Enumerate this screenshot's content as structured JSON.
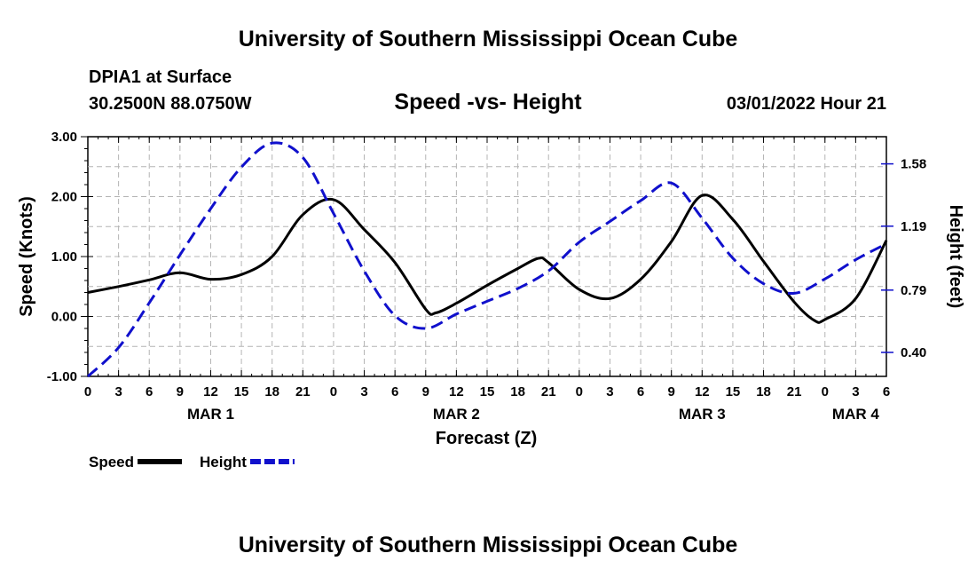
{
  "page": {
    "title_top": "University of Southern Mississippi Ocean Cube",
    "title_bottom": "University of Southern Mississippi Ocean Cube",
    "station_line": "DPIA1 at Surface",
    "coords_line": "30.2500N  88.0750W",
    "date_line": "03/01/2022 Hour 21"
  },
  "chart_data": {
    "type": "line",
    "title": "Speed -vs- Height",
    "xlabel": "Forecast (Z)",
    "ylabel": "Speed (Knots)",
    "y2label": "Height (feet)",
    "x_range_hours": [
      0,
      78
    ],
    "ylim": [
      -1.0,
      3.0
    ],
    "y2lim": [
      0.25,
      1.75
    ],
    "yticks": [
      -1.0,
      0.0,
      1.0,
      2.0,
      3.0
    ],
    "ytick_labels": [
      "-1.00",
      "0.00",
      "1.00",
      "2.00",
      "3.00"
    ],
    "y2ticks": [
      0.4,
      0.79,
      1.19,
      1.58
    ],
    "y2tick_labels": [
      "0.40",
      "0.79",
      "1.19",
      "1.58"
    ],
    "xtick_hours": [
      0,
      3,
      6,
      9,
      12,
      15,
      18,
      21,
      24,
      27,
      30,
      33,
      36,
      39,
      42,
      45,
      48,
      51,
      54,
      57,
      60,
      63,
      66,
      69,
      72,
      75,
      78
    ],
    "xtick_labels": [
      "0",
      "3",
      "6",
      "9",
      "12",
      "15",
      "18",
      "21",
      "0",
      "3",
      "6",
      "9",
      "12",
      "15",
      "18",
      "21",
      "0",
      "3",
      "6",
      "9",
      "12",
      "15",
      "18",
      "21",
      "0",
      "3",
      "6"
    ],
    "day_labels": [
      {
        "hour": 12,
        "label": "MAR 1"
      },
      {
        "hour": 36,
        "label": "MAR 2"
      },
      {
        "hour": 60,
        "label": "MAR 3"
      },
      {
        "hour": 75,
        "label": "MAR 4"
      }
    ],
    "grid": true,
    "series": [
      {
        "name": "Speed",
        "axis": "left",
        "color": "#000000",
        "dash": "solid",
        "x": [
          0,
          3,
          6,
          9,
          12,
          15,
          18,
          21,
          24,
          27,
          30,
          33,
          34,
          36,
          39,
          42,
          44,
          45,
          48,
          51,
          54,
          57,
          60,
          63,
          66,
          69,
          71,
          72,
          75,
          78
        ],
        "values": [
          0.4,
          0.5,
          0.61,
          0.73,
          0.62,
          0.7,
          1.0,
          1.7,
          1.95,
          1.45,
          0.9,
          0.12,
          0.06,
          0.22,
          0.52,
          0.8,
          0.97,
          0.9,
          0.45,
          0.3,
          0.62,
          1.25,
          2.02,
          1.62,
          0.92,
          0.24,
          -0.07,
          -0.05,
          0.3,
          1.27
        ]
      },
      {
        "name": "Height",
        "axis": "right",
        "color": "#1010cc",
        "dash": "dashed",
        "x": [
          0,
          3,
          6,
          9,
          12,
          15,
          18,
          21,
          24,
          27,
          30,
          33,
          36,
          39,
          42,
          45,
          48,
          51,
          54,
          57,
          60,
          63,
          66,
          69,
          72,
          75,
          78
        ],
        "values": [
          0.25,
          0.43,
          0.71,
          1.01,
          1.3,
          1.56,
          1.71,
          1.62,
          1.27,
          0.91,
          0.63,
          0.55,
          0.64,
          0.72,
          0.8,
          0.91,
          1.09,
          1.22,
          1.35,
          1.46,
          1.24,
          0.99,
          0.83,
          0.77,
          0.86,
          0.98,
          1.08
        ]
      }
    ],
    "legend": [
      {
        "label": "Speed",
        "color": "#000000",
        "dash": "solid"
      },
      {
        "label": "Height",
        "color": "#1010cc",
        "dash": "dashed"
      }
    ],
    "legend_position": "bottom-left"
  }
}
